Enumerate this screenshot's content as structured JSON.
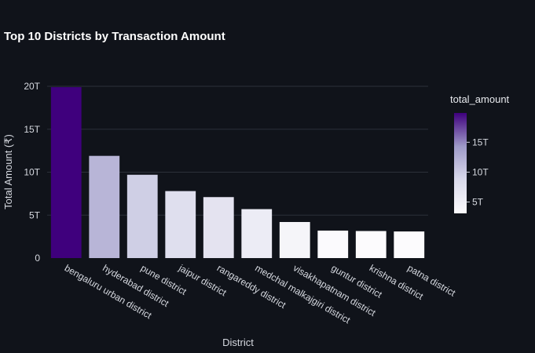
{
  "chart_data": {
    "type": "bar",
    "title": "Top 10 Districts by Transaction Amount",
    "xlabel": "District",
    "ylabel": "Total Amount (₹)",
    "categories": [
      "bengaluru urban district",
      "hyderabad district",
      "pune district",
      "jaipur district",
      "rangareddy district",
      "medchal malkajgiri district",
      "visakhapatnam district",
      "guntur district",
      "krishna district",
      "patna district"
    ],
    "values": [
      19.9,
      11.9,
      9.7,
      7.8,
      7.1,
      5.7,
      4.2,
      3.2,
      3.15,
      3.1
    ],
    "value_unit": "T",
    "ylim": [
      0,
      20
    ],
    "yticks": [
      0,
      5,
      10,
      15,
      20
    ],
    "ytick_labels": [
      "0",
      "5T",
      "10T",
      "15T",
      "20T"
    ],
    "grid": true,
    "colorbar": {
      "title": "total_amount",
      "range": [
        3.1,
        19.9
      ],
      "ticks": [
        5,
        10,
        15
      ],
      "tick_labels": [
        "5T",
        "10T",
        "15T"
      ],
      "colors": [
        "#fcfbfd",
        "#dadaeb",
        "#9e9ac8",
        "#3f007d"
      ],
      "placement": "right"
    }
  }
}
